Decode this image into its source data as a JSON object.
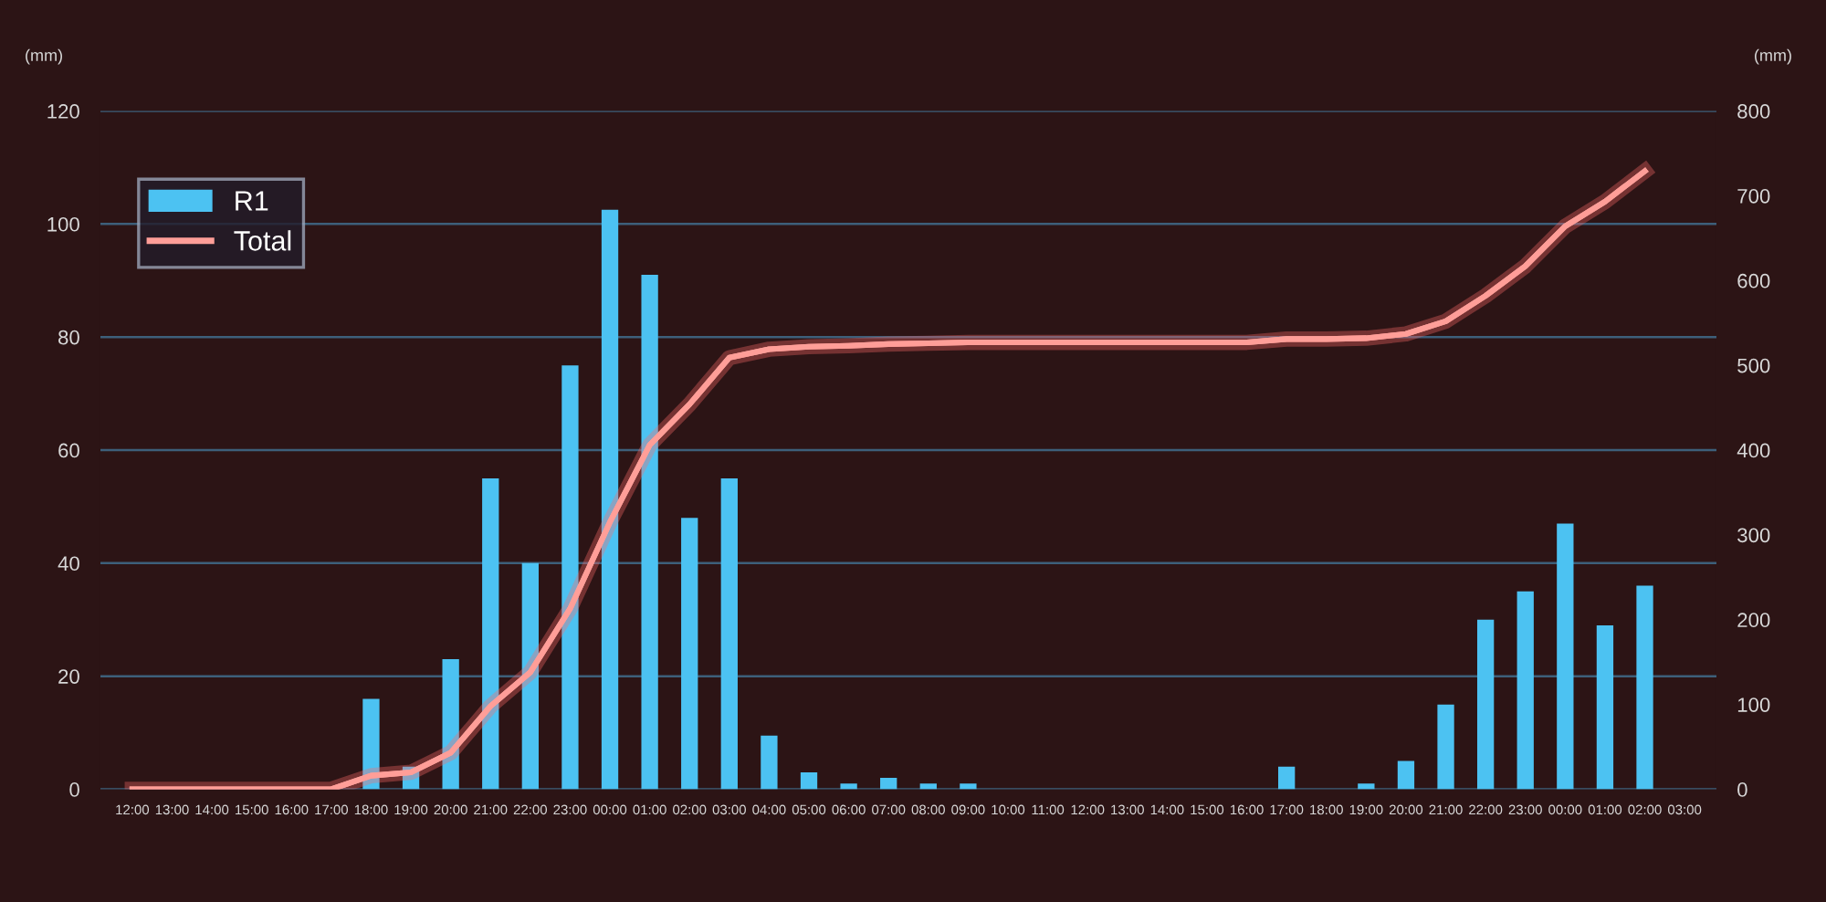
{
  "chart_data": {
    "type": "bar",
    "ylabel": "(mm)",
    "y2label": "(mm)",
    "categories": [
      "12:00",
      "13:00",
      "14:00",
      "15:00",
      "16:00",
      "17:00",
      "18:00",
      "19:00",
      "20:00",
      "21:00",
      "22:00",
      "23:00",
      "00:00",
      "01:00",
      "02:00",
      "03:00",
      "04:00",
      "05:00",
      "06:00",
      "07:00",
      "08:00",
      "09:00",
      "10:00",
      "11:00",
      "12:00",
      "13:00",
      "14:00",
      "15:00",
      "16:00",
      "17:00",
      "18:00",
      "19:00",
      "20:00",
      "21:00",
      "22:00",
      "23:00",
      "00:00",
      "01:00",
      "02:00",
      "03:00"
    ],
    "series": [
      {
        "name": "R1",
        "color": "#4cc2f2",
        "values": [
          0,
          0,
          0,
          0,
          0,
          0,
          16,
          4,
          23,
          55,
          40,
          75,
          102.5,
          91,
          48,
          55,
          9.5,
          3,
          1,
          2,
          1,
          1,
          0,
          0,
          0,
          0,
          0,
          0,
          0,
          4,
          0,
          1,
          5,
          15,
          30,
          35,
          47,
          29,
          36,
          0
        ]
      },
      {
        "name": "Total",
        "type": "line",
        "axis": "y2",
        "color": "#ff9e98",
        "values": [
          0,
          0,
          0,
          0,
          0,
          0,
          16,
          20,
          43,
          98,
          138,
          213,
          315,
          406,
          454,
          509,
          519,
          522,
          523,
          525,
          526,
          527,
          527,
          527,
          527,
          527,
          527,
          527,
          527,
          531,
          531,
          532,
          537,
          552,
          582,
          617,
          664,
          693,
          729,
          null
        ]
      }
    ],
    "ylim": [
      0,
      120
    ],
    "yticks": [
      0,
      20,
      40,
      60,
      80,
      100,
      120
    ],
    "y2lim": [
      0,
      800
    ],
    "y2ticks": [
      0,
      100,
      200,
      300,
      400,
      500,
      600,
      700,
      800
    ],
    "grid": "y",
    "legend": "top left"
  }
}
